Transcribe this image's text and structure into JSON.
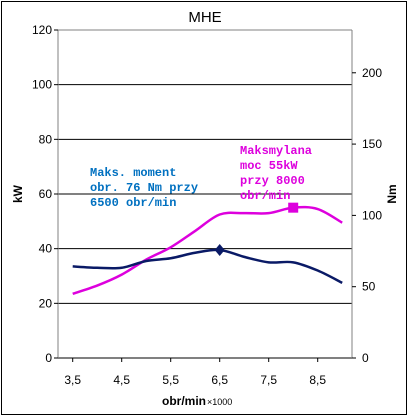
{
  "chart_data": {
    "type": "line",
    "title": "MHE",
    "xlabel": "obr/min",
    "xlabel_unit": "×1000",
    "ylabel_left": "kW",
    "ylabel_right": "Nm",
    "x_ticks": [
      "3,5",
      "4,5",
      "5,5",
      "6,5",
      "7,5",
      "8,5"
    ],
    "x_tick_values": [
      3.5,
      4.5,
      5.5,
      6.5,
      7.5,
      8.5
    ],
    "xlim": [
      3.2,
      9.2
    ],
    "ylim_left": [
      0,
      120
    ],
    "y_ticks_left": [
      "0",
      "20",
      "40",
      "60",
      "80",
      "100",
      "120"
    ],
    "y_tick_values_left": [
      0,
      20,
      40,
      60,
      80,
      100,
      120
    ],
    "ylim_right": [
      0,
      230
    ],
    "y_ticks_right": [
      "0",
      "50",
      "100",
      "150",
      "200"
    ],
    "y_tick_values_right": [
      0,
      50,
      100,
      150,
      200
    ],
    "grid": "horizontal",
    "series": [
      {
        "axis": "left",
        "color": "#dd00dd",
        "x": [
          3.5,
          4.0,
          4.5,
          5.0,
          5.5,
          6.0,
          6.5,
          7.0,
          7.5,
          8.0,
          8.5,
          9.0
        ],
        "values": [
          23.5,
          26.5,
          30.5,
          36,
          40.5,
          46.5,
          52.5,
          53,
          53,
          55,
          54.5,
          49.5
        ],
        "marker": {
          "x": 8.0,
          "y": 55,
          "shape": "square"
        }
      },
      {
        "axis": "left",
        "color": "#0a1a66",
        "x": [
          3.5,
          4.0,
          4.5,
          5.0,
          5.5,
          6.0,
          6.5,
          7.0,
          7.5,
          8.0,
          8.5,
          9.0
        ],
        "values": [
          33.5,
          33,
          33,
          35.5,
          36.5,
          38.5,
          39.5,
          37,
          35,
          35,
          32,
          27.5
        ],
        "marker": {
          "x": 6.5,
          "y": 39.5,
          "shape": "diamond"
        }
      }
    ],
    "annotations": [
      {
        "color": "#0070c0",
        "lines": [
          "Maks. moment",
          "obr. 76 Nm przy",
          "6500 obr/min"
        ]
      },
      {
        "color": "#dd00dd",
        "lines": [
          "Maksmylana",
          "moc 55kW",
          "przy 8000",
          "obr/min"
        ]
      }
    ]
  }
}
